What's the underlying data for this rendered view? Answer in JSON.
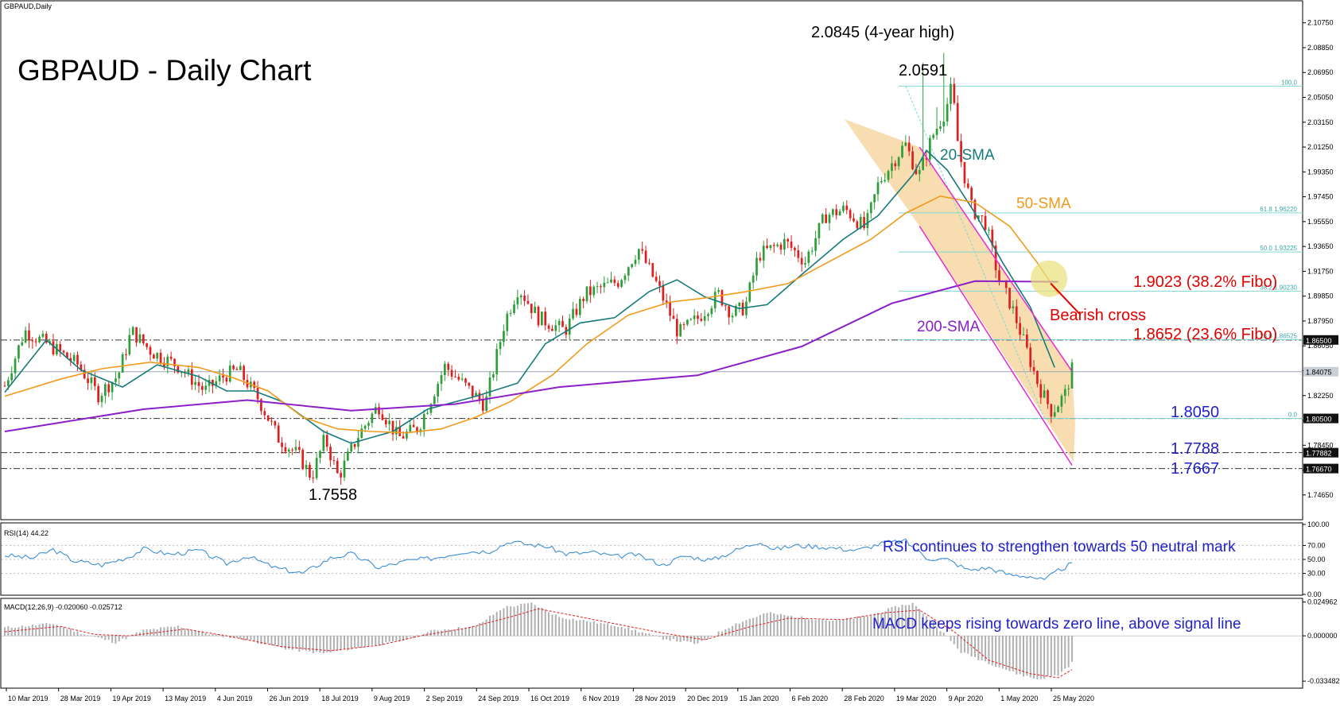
{
  "window_label": "GBPAUD,Daily",
  "colors": {
    "bull": "#2e9e3a",
    "bear": "#e01e1e",
    "sma20": "#157a7a",
    "sma50": "#f29a1c",
    "sma200": "#8a20c8",
    "channel": "#e52ad2",
    "channel_fill": "#f7d7a3",
    "fibo": "#7fd6d6",
    "annot_red": "#e00000",
    "annot_blue": "#1f1fcc",
    "rsi_line": "#3d8fd6",
    "macd_hist": "#b0b0b0",
    "macd_signal": "#e01e1e"
  },
  "chart_data": [
    {
      "type": "candlestick",
      "title": "GBPAUD - Daily Chart",
      "ylim": [
        1.73,
        2.114
      ],
      "x_ticks": [
        "10 Mar 2019",
        "28 Mar 2019",
        "19 Apr 2019",
        "13 May 2019",
        "4 Jun 2019",
        "26 Jun 2019",
        "18 Jul 2019",
        "9 Aug 2019",
        "2 Sep 2019",
        "24 Sep 2019",
        "16 Oct 2019",
        "6 Nov 2019",
        "28 Nov 2019",
        "20 Dec 2019",
        "15 Jan 2020",
        "6 Feb 2020",
        "28 Feb 2020",
        "19 Mar 2020",
        "9 Apr 2020",
        "1 May 2020",
        "25 May 2020"
      ],
      "y_ticks": [
        "2.10750",
        "2.08850",
        "2.06950",
        "2.05050",
        "2.03150",
        "2.01250",
        "1.99350",
        "1.97450",
        "1.95550",
        "1.93650",
        "1.91750",
        "1.89850",
        "1.87950",
        "1.86050",
        "1.84150",
        "1.82250",
        "1.80350",
        "1.78450",
        "1.76550",
        "1.74650"
      ],
      "price_tags": [
        {
          "label": "1.86500",
          "value": 1.865,
          "style": "dark"
        },
        {
          "label": "1.84075",
          "value": 1.84075,
          "style": "gray"
        },
        {
          "label": "1.80500",
          "value": 1.805,
          "style": "dark"
        },
        {
          "label": "1.77882",
          "value": 1.77882,
          "style": "dark"
        },
        {
          "label": "1.76670",
          "value": 1.7667,
          "style": "dark"
        }
      ],
      "horizontal_levels": [
        {
          "value": 1.865,
          "style": "dashdot"
        },
        {
          "value": 1.805,
          "style": "dashdot"
        },
        {
          "value": 1.77882,
          "style": "dashdot"
        },
        {
          "value": 1.7667,
          "style": "dashdot"
        },
        {
          "value": 1.84075,
          "style": "solid"
        }
      ],
      "fibo_levels": [
        {
          "label": "100.0",
          "value": 2.0591
        },
        {
          "label": "61.8 1.96220",
          "value": 1.9622
        },
        {
          "label": "50.0 1.93225",
          "value": 1.93225
        },
        {
          "label": "38.2 1.90230",
          "value": 1.9023
        },
        {
          "label": "23.6 1.86525",
          "value": 1.86525
        },
        {
          "label": "0.0",
          "value": 1.805
        }
      ],
      "series": [
        {
          "name": "20-SMA",
          "points": [
            [
              0,
              1.825
            ],
            [
              12,
              1.865
            ],
            [
              22,
              1.842
            ],
            [
              34,
              1.829
            ],
            [
              44,
              1.846
            ],
            [
              56,
              1.837
            ],
            [
              64,
              1.826
            ],
            [
              72,
              1.826
            ],
            [
              80,
              1.818
            ],
            [
              92,
              1.795
            ],
            [
              100,
              1.786
            ],
            [
              112,
              1.795
            ],
            [
              122,
              1.812
            ],
            [
              136,
              1.822
            ],
            [
              148,
              1.832
            ],
            [
              156,
              1.862
            ],
            [
              166,
              1.878
            ],
            [
              176,
              1.882
            ],
            [
              186,
              1.902
            ],
            [
              194,
              1.911
            ],
            [
              202,
              1.898
            ],
            [
              212,
              1.889
            ],
            [
              220,
              1.892
            ],
            [
              230,
              1.915
            ],
            [
              242,
              1.942
            ],
            [
              252,
              1.96
            ],
            [
              262,
              1.991
            ],
            [
              266,
              2.01
            ],
            [
              272,
              1.995
            ],
            [
              280,
              1.962
            ],
            [
              288,
              1.924
            ],
            [
              296,
              1.89
            ],
            [
              303,
              1.844
            ]
          ]
        },
        {
          "name": "50-SMA",
          "points": [
            [
              0,
              1.822
            ],
            [
              16,
              1.835
            ],
            [
              28,
              1.843
            ],
            [
              42,
              1.848
            ],
            [
              56,
              1.844
            ],
            [
              66,
              1.836
            ],
            [
              76,
              1.826
            ],
            [
              86,
              1.806
            ],
            [
              96,
              1.797
            ],
            [
              106,
              1.795
            ],
            [
              116,
              1.794
            ],
            [
              126,
              1.797
            ],
            [
              136,
              1.806
            ],
            [
              146,
              1.818
            ],
            [
              158,
              1.838
            ],
            [
              168,
              1.862
            ],
            [
              180,
              1.884
            ],
            [
              192,
              1.894
            ],
            [
              202,
              1.897
            ],
            [
              214,
              1.902
            ],
            [
              226,
              1.908
            ],
            [
              238,
              1.925
            ],
            [
              250,
              1.942
            ],
            [
              260,
              1.962
            ],
            [
              270,
              1.975
            ],
            [
              280,
              1.97
            ],
            [
              290,
              1.952
            ],
            [
              298,
              1.924
            ],
            [
              304,
              1.9
            ]
          ]
        },
        {
          "name": "200-SMA",
          "points": [
            [
              0,
              1.795
            ],
            [
              40,
              1.812
            ],
            [
              70,
              1.819
            ],
            [
              100,
              1.811
            ],
            [
              130,
              1.816
            ],
            [
              160,
              1.829
            ],
            [
              200,
              1.838
            ],
            [
              230,
              1.86
            ],
            [
              256,
              1.893
            ],
            [
              280,
              1.91
            ],
            [
              304,
              1.9095
            ]
          ]
        }
      ],
      "channel_upper": [
        [
          264,
          2.0125
        ],
        [
          308,
          1.841
        ]
      ],
      "channel_lower": [
        [
          264,
          1.952
        ],
        [
          308,
          1.7692
        ]
      ],
      "fibo_swing": [
        [
          260,
          2.0591
        ],
        [
          300,
          1.805
        ]
      ],
      "annotations": [
        {
          "text": "2.0845 (4-year high)",
          "color": "black",
          "anchor": "4-year high"
        },
        {
          "text": "2.0591",
          "color": "black",
          "anchor": "swing high"
        },
        {
          "text": "20-SMA",
          "color": "teal"
        },
        {
          "text": "50-SMA",
          "color": "orange"
        },
        {
          "text": "200-SMA",
          "color": "purple"
        },
        {
          "text": "1.9023 (38.2% Fibo)",
          "color": "red"
        },
        {
          "text": "Bearish cross",
          "color": "red"
        },
        {
          "text": "1.8652 (23.6% Fibo)",
          "color": "red"
        },
        {
          "text": "1.8050",
          "color": "blue"
        },
        {
          "text": "1.7788",
          "color": "blue"
        },
        {
          "text": "1.7667",
          "color": "blue"
        },
        {
          "text": "1.7558",
          "color": "black",
          "anchor": "swing low"
        }
      ]
    },
    {
      "type": "line",
      "title": "RSI(14) 44.22",
      "ylim": [
        0,
        100
      ],
      "y_ticks": [
        "100.00",
        "70.00",
        "50.00",
        "30.00",
        "0.00"
      ],
      "levels": [
        70,
        50,
        30
      ],
      "series": [
        {
          "name": "RSI(14)",
          "points": [
            [
              0,
              56
            ],
            [
              8,
              52
            ],
            [
              14,
              64
            ],
            [
              20,
              48
            ],
            [
              28,
              42
            ],
            [
              36,
              54
            ],
            [
              40,
              65
            ],
            [
              48,
              57
            ],
            [
              56,
              63
            ],
            [
              64,
              44
            ],
            [
              70,
              55
            ],
            [
              78,
              38
            ],
            [
              86,
              30
            ],
            [
              94,
              52
            ],
            [
              100,
              58
            ],
            [
              108,
              38
            ],
            [
              116,
              48
            ],
            [
              124,
              52
            ],
            [
              132,
              61
            ],
            [
              140,
              62
            ],
            [
              146,
              76
            ],
            [
              150,
              72
            ],
            [
              156,
              69
            ],
            [
              162,
              58
            ],
            [
              170,
              60
            ],
            [
              176,
              54
            ],
            [
              182,
              57
            ],
            [
              190,
              42
            ],
            [
              196,
              55
            ],
            [
              204,
              49
            ],
            [
              212,
              65
            ],
            [
              218,
              76
            ],
            [
              222,
              64
            ],
            [
              228,
              70
            ],
            [
              236,
              68
            ],
            [
              246,
              63
            ],
            [
              254,
              74
            ],
            [
              260,
              76
            ],
            [
              266,
              52
            ],
            [
              272,
              50
            ],
            [
              278,
              35
            ],
            [
              284,
              38
            ],
            [
              290,
              28
            ],
            [
              296,
              26
            ],
            [
              300,
              20
            ],
            [
              304,
              34
            ],
            [
              308,
              44
            ]
          ]
        }
      ],
      "annotation": "RSI continues to strengthen towards 50 neutral mark"
    },
    {
      "type": "histogram",
      "title": "MACD(12,26,9) -0.020060 -0.025712",
      "ylim": [
        -0.0375,
        0.0265
      ],
      "y_ticks": [
        "0.024962",
        "0.000000",
        "-0.033482"
      ],
      "histogram": [
        [
          0,
          0.006
        ],
        [
          14,
          0.009
        ],
        [
          22,
          0.002
        ],
        [
          32,
          -0.005
        ],
        [
          40,
          0.004
        ],
        [
          50,
          0.007
        ],
        [
          58,
          0.002
        ],
        [
          70,
          -0.003
        ],
        [
          82,
          -0.01
        ],
        [
          92,
          -0.013
        ],
        [
          104,
          -0.008
        ],
        [
          114,
          -0.004
        ],
        [
          124,
          0.004
        ],
        [
          136,
          0.007
        ],
        [
          144,
          0.021
        ],
        [
          152,
          0.024
        ],
        [
          160,
          0.014
        ],
        [
          170,
          0.01
        ],
        [
          178,
          0.007
        ],
        [
          190,
          -0.002
        ],
        [
          200,
          -0.006
        ],
        [
          210,
          0.008
        ],
        [
          220,
          0.017
        ],
        [
          228,
          0.014
        ],
        [
          240,
          0.011
        ],
        [
          250,
          0.015
        ],
        [
          258,
          0.022
        ],
        [
          262,
          0.024
        ],
        [
          268,
          0.01
        ],
        [
          276,
          -0.012
        ],
        [
          284,
          -0.02
        ],
        [
          292,
          -0.028
        ],
        [
          298,
          -0.032
        ],
        [
          304,
          -0.029
        ],
        [
          308,
          -0.02
        ]
      ],
      "signal": [
        [
          0,
          0.003
        ],
        [
          16,
          0.007
        ],
        [
          26,
          0.001
        ],
        [
          36,
          0.0
        ],
        [
          52,
          0.005
        ],
        [
          64,
          0.0
        ],
        [
          80,
          -0.008
        ],
        [
          94,
          -0.011
        ],
        [
          108,
          -0.007
        ],
        [
          120,
          0.0
        ],
        [
          134,
          0.006
        ],
        [
          146,
          0.014
        ],
        [
          154,
          0.02
        ],
        [
          164,
          0.015
        ],
        [
          176,
          0.009
        ],
        [
          190,
          0.002
        ],
        [
          202,
          -0.003
        ],
        [
          214,
          0.006
        ],
        [
          226,
          0.013
        ],
        [
          242,
          0.012
        ],
        [
          254,
          0.017
        ],
        [
          264,
          0.019
        ],
        [
          274,
          0.003
        ],
        [
          284,
          -0.018
        ],
        [
          296,
          -0.028
        ],
        [
          304,
          -0.031
        ],
        [
          308,
          -0.025
        ]
      ],
      "annotation": "MACD keeps rising towards zero line, above signal line"
    }
  ]
}
